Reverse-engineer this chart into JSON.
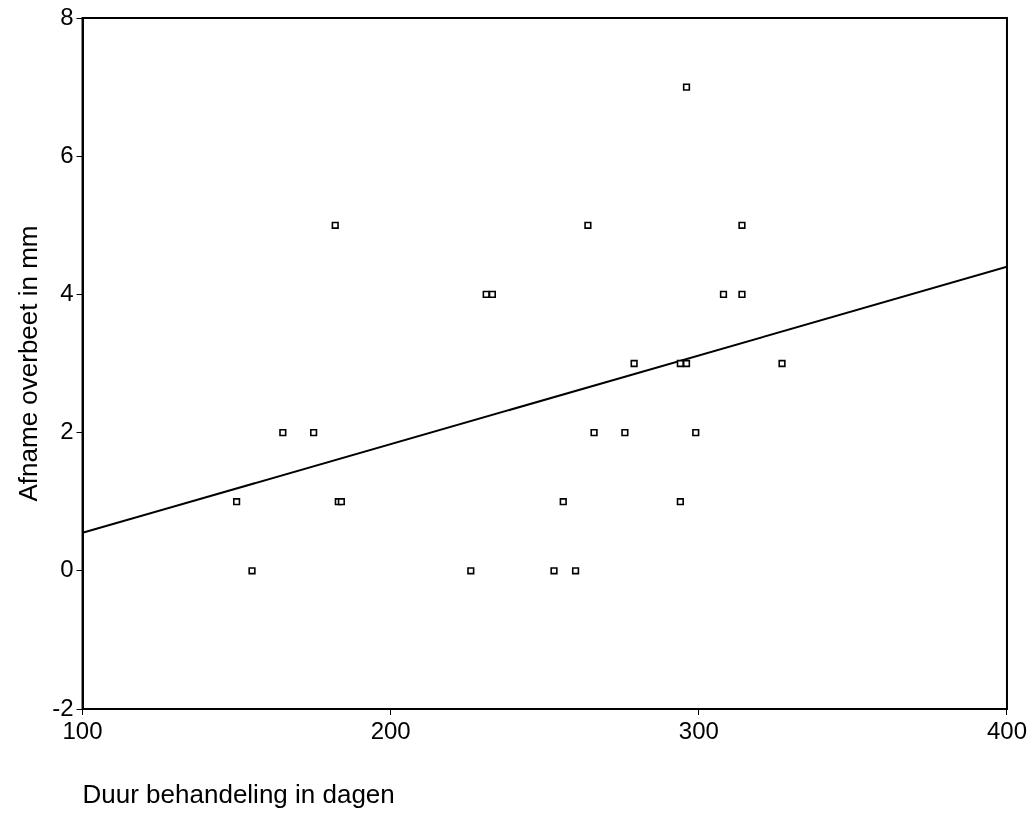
{
  "chart_data": {
    "type": "scatter",
    "xlabel": "Duur behandeling in dagen",
    "ylabel": "Afname overbeet in mm",
    "xlim": [
      100,
      400
    ],
    "xticks": [
      100,
      200,
      300,
      400
    ],
    "ylim": [
      -2,
      8
    ],
    "yticks": [
      -2,
      0,
      2,
      4,
      6,
      8
    ],
    "grid": false,
    "legend": false,
    "marker": "square",
    "series": [
      {
        "color": "#000000",
        "x": [
          150,
          155,
          165,
          175,
          182,
          183,
          184,
          226,
          231,
          233,
          253,
          256,
          260,
          264,
          266,
          276,
          279,
          294,
          296,
          294,
          296,
          299,
          308,
          314,
          314,
          327
        ],
        "values": [
          1,
          0,
          2,
          2,
          5,
          1,
          1,
          0,
          4,
          4,
          0,
          1,
          0,
          5,
          2,
          2,
          3,
          3,
          3,
          1,
          7,
          2,
          4,
          4,
          5,
          3
        ]
      },
      {
        "type": "line",
        "color": "#000000",
        "x": [
          100,
          400
        ],
        "values": [
          0.55,
          4.4
        ],
        "marker": "none",
        "line_style": "solid"
      }
    ]
  }
}
